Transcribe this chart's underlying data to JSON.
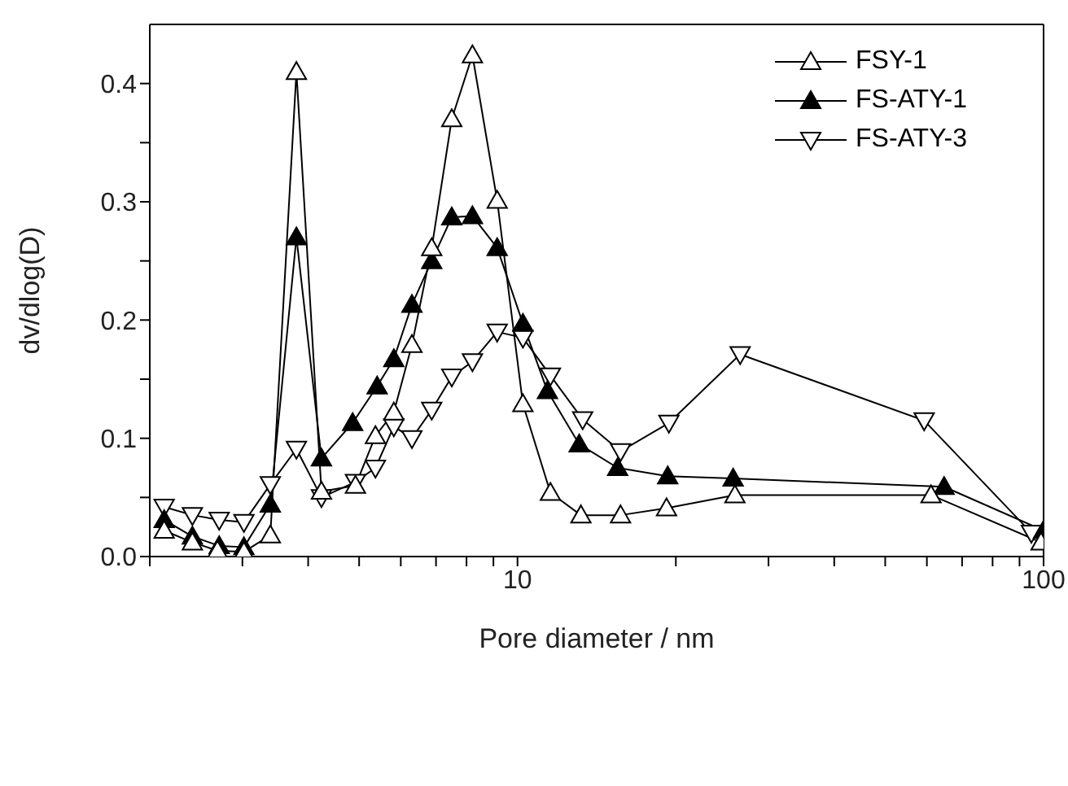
{
  "chart_data": {
    "type": "line",
    "xlabel": "Pore diameter / nm",
    "ylabel": "dv/dlog(D)",
    "log": "x",
    "xlim": [
      2,
      100
    ],
    "ylim": [
      0,
      0.45
    ],
    "xticks": [
      {
        "value": 2,
        "label": null
      },
      {
        "value": 3,
        "label": null
      },
      {
        "value": 4,
        "label": null
      },
      {
        "value": 5,
        "label": null
      },
      {
        "value": 6,
        "label": null
      },
      {
        "value": 7,
        "label": null
      },
      {
        "value": 8,
        "label": null
      },
      {
        "value": 9,
        "label": null
      },
      10,
      {
        "value": 20,
        "label": null
      },
      {
        "value": 30,
        "label": null
      },
      {
        "value": 40,
        "label": null
      },
      {
        "value": 50,
        "label": null
      },
      {
        "value": 60,
        "label": null
      },
      {
        "value": 70,
        "label": null
      },
      {
        "value": 80,
        "label": null
      },
      {
        "value": 90,
        "label": null
      },
      100
    ],
    "yticks": [
      {
        "value": 0,
        "label": "0.0"
      },
      {
        "value": 0.05,
        "label": null
      },
      0.1,
      {
        "value": 0.15,
        "label": null
      },
      0.2,
      {
        "value": 0.25,
        "label": null
      },
      0.3,
      {
        "value": 0.35,
        "label": null
      },
      0.4
    ],
    "legend": "top right",
    "line_style": "solid",
    "series": [
      {
        "name": "FSY-1",
        "color": "#000000",
        "marker": "triangle_open",
        "x": [
          2.13,
          2.41,
          2.69,
          3.02,
          3.39,
          3.8,
          4.24,
          4.92,
          5.37,
          5.82,
          6.3,
          6.87,
          7.5,
          8.21,
          9.15,
          10.24,
          11.55,
          13.2,
          15.7,
          19.2,
          25.9,
          61.1,
          98.9
        ],
        "values": [
          0.022,
          0.012,
          0.005,
          0.004,
          0.018,
          0.41,
          0.055,
          0.06,
          0.102,
          0.122,
          0.179,
          0.261,
          0.37,
          0.424,
          0.301,
          0.129,
          0.054,
          0.035,
          0.035,
          0.041,
          0.052,
          0.052,
          0.012
        ]
      },
      {
        "name": "FS-ATY-1",
        "color": "#000000",
        "marker": "triangle",
        "x": [
          2.13,
          2.41,
          2.71,
          3.02,
          3.39,
          3.8,
          4.24,
          4.86,
          5.41,
          5.82,
          6.3,
          6.87,
          7.5,
          8.21,
          9.15,
          10.24,
          11.4,
          13.1,
          15.5,
          19.3,
          25.7,
          64.7,
          100
        ],
        "values": [
          0.031,
          0.017,
          0.009,
          0.008,
          0.044,
          0.27,
          0.083,
          0.113,
          0.144,
          0.167,
          0.213,
          0.25,
          0.287,
          0.288,
          0.261,
          0.197,
          0.14,
          0.095,
          0.075,
          0.068,
          0.066,
          0.059,
          0.022
        ]
      },
      {
        "name": "FS-ATY-3",
        "color": "#000000",
        "marker": "triangle_down_open",
        "x": [
          2.13,
          2.41,
          2.71,
          3.02,
          3.39,
          3.8,
          4.24,
          4.92,
          5.37,
          5.82,
          6.3,
          6.87,
          7.5,
          8.21,
          9.15,
          10.24,
          11.55,
          13.3,
          15.7,
          19.4,
          26.5,
          59.3,
          94.8
        ],
        "values": [
          0.042,
          0.035,
          0.031,
          0.029,
          0.061,
          0.091,
          0.05,
          0.063,
          0.075,
          0.11,
          0.1,
          0.124,
          0.152,
          0.165,
          0.19,
          0.185,
          0.153,
          0.116,
          0.089,
          0.113,
          0.171,
          0.115,
          0.02
        ]
      }
    ]
  }
}
